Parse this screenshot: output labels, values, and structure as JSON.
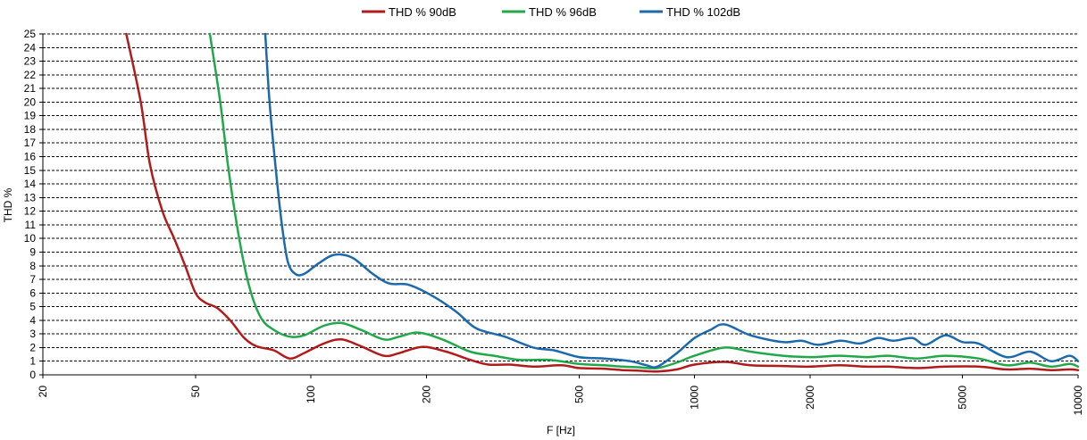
{
  "chart_data": {
    "type": "line",
    "xscale": "log",
    "xlabel": "F [Hz]",
    "ylabel": "THD %",
    "xlim": [
      20,
      10000
    ],
    "ylim": [
      0,
      25
    ],
    "grid": "horizontal dashed",
    "legend_position": "top",
    "x_ticks": [
      "20",
      "50",
      "100",
      "200",
      "500",
      "1000",
      "2000",
      "5000",
      "10000"
    ],
    "y_ticks": [
      "0",
      "1",
      "2",
      "3",
      "4",
      "5",
      "6",
      "7",
      "8",
      "9",
      "10",
      "11",
      "12",
      "13",
      "14",
      "15",
      "16",
      "17",
      "18",
      "19",
      "20",
      "21",
      "22",
      "23",
      "24",
      "25"
    ],
    "series": [
      {
        "name": "THD % 90dB",
        "color": "#b01c1c",
        "points": [
          [
            33,
            25
          ],
          [
            36,
            20
          ],
          [
            38,
            15.5
          ],
          [
            41,
            12
          ],
          [
            44,
            10
          ],
          [
            47,
            8
          ],
          [
            50,
            6
          ],
          [
            53,
            5.3
          ],
          [
            57,
            4.9
          ],
          [
            62,
            3.9
          ],
          [
            67,
            2.7
          ],
          [
            72,
            2.1
          ],
          [
            80,
            1.8
          ],
          [
            88,
            1.2
          ],
          [
            96,
            1.6
          ],
          [
            108,
            2.3
          ],
          [
            120,
            2.6
          ],
          [
            135,
            2.1
          ],
          [
            155,
            1.4
          ],
          [
            170,
            1.6
          ],
          [
            195,
            2.05
          ],
          [
            225,
            1.7
          ],
          [
            260,
            1.1
          ],
          [
            290,
            0.75
          ],
          [
            330,
            0.75
          ],
          [
            380,
            0.6
          ],
          [
            450,
            0.7
          ],
          [
            500,
            0.5
          ],
          [
            580,
            0.45
          ],
          [
            650,
            0.35
          ],
          [
            720,
            0.3
          ],
          [
            800,
            0.25
          ],
          [
            900,
            0.4
          ],
          [
            1000,
            0.75
          ],
          [
            1200,
            0.95
          ],
          [
            1400,
            0.7
          ],
          [
            1700,
            0.65
          ],
          [
            2000,
            0.6
          ],
          [
            2400,
            0.7
          ],
          [
            2800,
            0.6
          ],
          [
            3200,
            0.6
          ],
          [
            3800,
            0.5
          ],
          [
            4500,
            0.6
          ],
          [
            5500,
            0.6
          ],
          [
            6500,
            0.4
          ],
          [
            7500,
            0.45
          ],
          [
            8500,
            0.35
          ],
          [
            9500,
            0.4
          ],
          [
            10000,
            0.35
          ]
        ]
      },
      {
        "name": "THD % 96dB",
        "color": "#22a84a",
        "points": [
          [
            54.5,
            25
          ],
          [
            58,
            20
          ],
          [
            61,
            15
          ],
          [
            65,
            10
          ],
          [
            69,
            6.5
          ],
          [
            74,
            4.2
          ],
          [
            80,
            3.3
          ],
          [
            88,
            2.8
          ],
          [
            96,
            2.9
          ],
          [
            108,
            3.6
          ],
          [
            120,
            3.8
          ],
          [
            135,
            3.3
          ],
          [
            155,
            2.6
          ],
          [
            170,
            2.8
          ],
          [
            190,
            3.1
          ],
          [
            220,
            2.6
          ],
          [
            260,
            1.7
          ],
          [
            300,
            1.4
          ],
          [
            350,
            1.1
          ],
          [
            420,
            1.1
          ],
          [
            500,
            0.8
          ],
          [
            580,
            0.7
          ],
          [
            650,
            0.6
          ],
          [
            720,
            0.55
          ],
          [
            800,
            0.5
          ],
          [
            900,
            0.9
          ],
          [
            1000,
            1.4
          ],
          [
            1200,
            2.0
          ],
          [
            1400,
            1.7
          ],
          [
            1700,
            1.4
          ],
          [
            2000,
            1.3
          ],
          [
            2400,
            1.4
          ],
          [
            2800,
            1.3
          ],
          [
            3200,
            1.4
          ],
          [
            3800,
            1.2
          ],
          [
            4500,
            1.4
          ],
          [
            5500,
            1.2
          ],
          [
            6500,
            0.7
          ],
          [
            7500,
            0.9
          ],
          [
            8500,
            0.6
          ],
          [
            9500,
            0.8
          ],
          [
            10000,
            0.6
          ]
        ]
      },
      {
        "name": "THD % 102dB",
        "color": "#1c6aac",
        "points": [
          [
            76,
            25
          ],
          [
            78,
            20
          ],
          [
            81,
            15
          ],
          [
            84,
            11
          ],
          [
            87,
            8.3
          ],
          [
            91,
            7.4
          ],
          [
            96,
            7.4
          ],
          [
            105,
            8.2
          ],
          [
            115,
            8.8
          ],
          [
            128,
            8.6
          ],
          [
            145,
            7.4
          ],
          [
            160,
            6.7
          ],
          [
            180,
            6.6
          ],
          [
            210,
            5.7
          ],
          [
            240,
            4.6
          ],
          [
            270,
            3.4
          ],
          [
            320,
            2.8
          ],
          [
            380,
            2.0
          ],
          [
            430,
            1.8
          ],
          [
            500,
            1.3
          ],
          [
            580,
            1.2
          ],
          [
            680,
            1.0
          ],
          [
            750,
            0.7
          ],
          [
            800,
            0.6
          ],
          [
            900,
            1.6
          ],
          [
            1000,
            2.7
          ],
          [
            1100,
            3.3
          ],
          [
            1200,
            3.7
          ],
          [
            1400,
            2.9
          ],
          [
            1700,
            2.4
          ],
          [
            1900,
            2.5
          ],
          [
            2100,
            2.2
          ],
          [
            2400,
            2.5
          ],
          [
            2700,
            2.3
          ],
          [
            3000,
            2.7
          ],
          [
            3300,
            2.5
          ],
          [
            3700,
            2.7
          ],
          [
            4000,
            2.2
          ],
          [
            4500,
            2.9
          ],
          [
            5000,
            2.4
          ],
          [
            5500,
            2.3
          ],
          [
            6500,
            1.3
          ],
          [
            7500,
            1.7
          ],
          [
            8500,
            1.0
          ],
          [
            9500,
            1.4
          ],
          [
            10000,
            1.0
          ]
        ]
      }
    ]
  }
}
